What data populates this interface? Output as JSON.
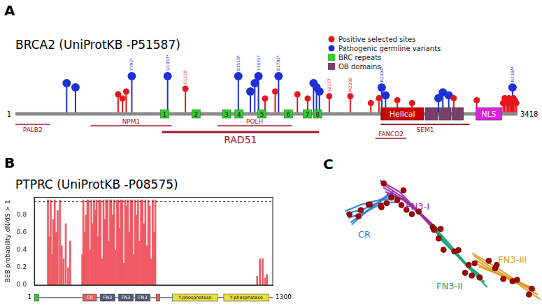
{
  "panel_a": {
    "letter": "A",
    "title": "BRCA2 (UniProtKB -P51587)",
    "length": [
      1,
      3418
    ],
    "legend": [
      {
        "label": "Positive selected sites",
        "color": "#e8141c",
        "marker": "circle"
      },
      {
        "label": "Pathogenic germline variants",
        "color": "#1f2fd8",
        "marker": "circle"
      },
      {
        "label": "BRC repeats",
        "color": "#33cc33",
        "marker": "square"
      },
      {
        "label": "OB domains",
        "color": "#7b3f6e",
        "marker": "square"
      }
    ],
    "positive_sites": [
      {
        "position": 700
      },
      {
        "position": 730
      },
      {
        "position": 755
      },
      {
        "position": 1158,
        "label": "C1158"
      },
      {
        "position": 1700
      },
      {
        "position": 1769
      },
      {
        "position": 1920
      },
      {
        "position": 1990
      },
      {
        "position": 2137,
        "label": "Y2137"
      },
      {
        "position": 2280,
        "label": "M2280"
      },
      {
        "position": 2420
      },
      {
        "position": 2475
      },
      {
        "position": 2600
      },
      {
        "position": 2700
      },
      {
        "position": 2984
      },
      {
        "position": 3140
      },
      {
        "position": 3320
      },
      {
        "position": 3330
      },
      {
        "position": 3340
      },
      {
        "position": 3350
      },
      {
        "position": 3360
      },
      {
        "position": 3370
      },
      {
        "position": 3380
      },
      {
        "position": 3390
      },
      {
        "position": 3400
      },
      {
        "position": 3410
      }
    ],
    "pathogenic_variants": [
      {
        "position": 350
      },
      {
        "position": 410
      },
      {
        "position": 793,
        "label": "Y793*"
      },
      {
        "position": 1037,
        "label": "Q1037*"
      },
      {
        "position": 1518,
        "label": "E1518*"
      },
      {
        "position": 1600
      },
      {
        "position": 1630
      },
      {
        "position": 1655,
        "label": "Y1655*"
      },
      {
        "position": 1792,
        "label": "E1792*"
      },
      {
        "position": 2030
      },
      {
        "position": 2050
      },
      {
        "position": 2070
      },
      {
        "position": 2494,
        "label": "R2494*"
      },
      {
        "position": 2520
      },
      {
        "position": 2880
      },
      {
        "position": 2910
      },
      {
        "position": 2950
      },
      {
        "position": 3384,
        "label": "R3384*"
      }
    ],
    "brc_repeats": [
      {
        "label": "1",
        "position": 1017
      },
      {
        "label": "2",
        "position": 1230
      },
      {
        "label": "3",
        "position": 1438
      },
      {
        "label": "4",
        "position": 1523
      },
      {
        "label": "5",
        "position": 1679
      },
      {
        "label": "6",
        "position": 1859
      },
      {
        "label": "7",
        "position": 1987
      },
      {
        "label": "8",
        "position": 2057
      }
    ],
    "domains": [
      {
        "label": "Helical",
        "start": 2487,
        "end": 2780,
        "color": "#cc0000"
      },
      {
        "start": 2790,
        "end": 2875,
        "color": "#7b3f6e"
      },
      {
        "start": 2884,
        "end": 2966,
        "color": "#7b3f6e"
      },
      {
        "start": 2972,
        "end": 3050,
        "color": "#7b3f6e"
      },
      {
        "label": "NLS",
        "start": 3135,
        "end": 3310,
        "color": "#dd22dd"
      }
    ],
    "interactions": [
      {
        "label": "PALB2",
        "start": 1,
        "end": 237
      },
      {
        "label": "NPM1",
        "start": 512,
        "end": 1065
      },
      {
        "label": "POLH",
        "start": 1377,
        "end": 1882
      },
      {
        "label": "RAD51",
        "start": 998,
        "end": 2067
      },
      {
        "label": "FANCD2",
        "start": 2450,
        "end": 2663
      },
      {
        "label": "SEM1",
        "start": 2487,
        "end": 3092
      }
    ],
    "interaction_color": "#a0182a"
  },
  "chart_data": {
    "panel_label": "B",
    "type": "bar",
    "title": "PTPRC (UniProtKB -P08575)",
    "y_label": "BEB probability dN/dS > 1",
    "color": "#f05a64",
    "x": [
      75,
      82,
      90,
      98,
      104,
      112,
      120,
      128,
      140,
      150,
      160,
      172,
      185,
      196,
      262,
      268,
      275,
      282,
      290,
      296,
      305,
      312,
      318,
      326,
      332,
      340,
      348,
      354,
      362,
      370,
      378,
      384,
      392,
      400,
      408,
      414,
      420,
      428,
      436,
      444,
      452,
      458,
      466,
      472,
      480,
      488,
      496,
      502,
      510,
      518,
      526,
      534,
      542,
      550,
      558,
      566,
      574,
      582,
      590,
      598,
      606,
      614,
      622,
      630,
      638,
      646,
      654,
      660,
      1215,
      1230,
      1245,
      1258,
      1268
    ],
    "values": [
      0.97,
      0.55,
      0.97,
      0.35,
      0.75,
      0.97,
      0.6,
      0.85,
      0.97,
      0.45,
      0.3,
      0.7,
      0.2,
      0.5,
      0.35,
      0.97,
      0.6,
      0.8,
      0.97,
      0.97,
      0.4,
      0.97,
      0.7,
      0.97,
      0.85,
      0.97,
      0.55,
      0.97,
      0.97,
      0.3,
      0.97,
      0.75,
      0.97,
      0.97,
      0.5,
      0.97,
      0.97,
      0.8,
      0.97,
      0.4,
      0.97,
      0.97,
      0.65,
      0.97,
      0.97,
      0.25,
      0.97,
      0.9,
      0.97,
      0.6,
      0.97,
      0.97,
      0.35,
      0.97,
      0.8,
      0.97,
      0.5,
      0.97,
      0.97,
      0.7,
      0.97,
      0.45,
      0.97,
      0.9,
      0.3,
      0.97,
      0.6,
      0.97,
      0.1,
      0.3,
      0.3,
      0.08,
      0.12
    ],
    "threshold": 0.95,
    "xlim": [
      1,
      1300
    ],
    "ylim": [
      0,
      1.0
    ],
    "yticks": [
      {
        "value": 0,
        "label": "0.0"
      },
      {
        "value": 0.2,
        "label": "0.2"
      },
      {
        "value": 0.4,
        "label": "0.4"
      },
      {
        "value": 0.6,
        "label": "0.6"
      },
      {
        "value": 0.8,
        "label": "0.8"
      }
    ],
    "grid": false,
    "tick_labels": "y",
    "domains": [
      {
        "start": 1,
        "end": 25,
        "color": "#33cc33"
      },
      {
        "label": "CR",
        "start": 265,
        "end": 340,
        "color": "#e06060"
      },
      {
        "label": "FN3",
        "start": 360,
        "end": 440,
        "color": "#555a77"
      },
      {
        "label": "FN3",
        "start": 460,
        "end": 540,
        "color": "#555a77"
      },
      {
        "label": "FN3",
        "start": 552,
        "end": 632,
        "color": "#555a77"
      },
      {
        "start": 665,
        "end": 685,
        "color": "#e06060"
      },
      {
        "label": "Y-phosphatase",
        "start": 753,
        "end": 1000,
        "color": "#e8e040"
      },
      {
        "label": "Y-phosphatase",
        "start": 1033,
        "end": 1280,
        "color": "#e8e040"
      }
    ]
  },
  "panel_c": {
    "letter": "C",
    "site_color": "#a00000",
    "domains": [
      {
        "label": "CR",
        "color": "#2a7fd4"
      },
      {
        "label": "FN3-I",
        "color": "#a0289c"
      },
      {
        "label": "FN3-II",
        "color": "#1aa37a"
      },
      {
        "label": "FN3-III",
        "color": "#e39a1c"
      }
    ]
  }
}
